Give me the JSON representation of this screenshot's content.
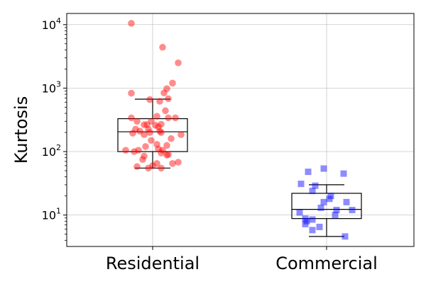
{
  "chart_data": {
    "type": "scatter",
    "subtype": "box-with-jitter",
    "title": "",
    "xlabel": "",
    "ylabel": "Kurtosis",
    "yscale": "log",
    "ylim": [
      3.2,
      15000
    ],
    "yticks": [
      10,
      100,
      1000,
      10000
    ],
    "ytick_labels": [
      {
        "base": "10",
        "exp": "1"
      },
      {
        "base": "10",
        "exp": "2"
      },
      {
        "base": "10",
        "exp": "3"
      },
      {
        "base": "10",
        "exp": "4"
      }
    ],
    "grid": true,
    "categories": [
      "Residential",
      "Commercial"
    ],
    "series": [
      {
        "category": "Residential",
        "marker": "circle",
        "color": "#ff0000",
        "box": {
          "whisker_low": 55,
          "q1": 100,
          "median": 205,
          "q3": 330,
          "whisker_high": 670
        },
        "points": [
          [
            -0.15,
            10500
          ],
          [
            0.07,
            4400
          ],
          [
            0.18,
            2500
          ],
          [
            0.14,
            1200
          ],
          [
            0.1,
            980
          ],
          [
            -0.15,
            830
          ],
          [
            0.08,
            840
          ],
          [
            -0.02,
            660
          ],
          [
            0.11,
            680
          ],
          [
            0.05,
            620
          ],
          [
            0.09,
            440
          ],
          [
            -0.15,
            340
          ],
          [
            0.03,
            360
          ],
          [
            0.16,
            340
          ],
          [
            0.11,
            340
          ],
          [
            -0.11,
            300
          ],
          [
            -0.06,
            265
          ],
          [
            -0.04,
            265
          ],
          [
            -0.01,
            300
          ],
          [
            0.02,
            260
          ],
          [
            0.06,
            270
          ],
          [
            0.04,
            245
          ],
          [
            -0.09,
            210
          ],
          [
            -0.03,
            225
          ],
          [
            -0.12,
            225
          ],
          [
            -0.02,
            200
          ],
          [
            0.05,
            210
          ],
          [
            0.06,
            200
          ],
          [
            0.2,
            185
          ],
          [
            -0.14,
            195
          ],
          [
            0.13,
            160
          ],
          [
            -0.06,
            185
          ],
          [
            -0.01,
            150
          ],
          [
            0.03,
            130
          ],
          [
            0.1,
            125
          ],
          [
            0.04,
            110
          ],
          [
            0.07,
            105
          ],
          [
            -0.05,
            120
          ],
          [
            -0.1,
            105
          ],
          [
            -0.13,
            100
          ],
          [
            0.06,
            95
          ],
          [
            -0.19,
            105
          ],
          [
            0.1,
            88
          ],
          [
            0.11,
            90
          ],
          [
            -0.06,
            85
          ],
          [
            -0.07,
            75
          ],
          [
            0.03,
            65
          ],
          [
            0.14,
            65
          ],
          [
            0.18,
            68
          ],
          [
            0.0,
            60
          ],
          [
            -0.11,
            58
          ],
          [
            -0.03,
            55
          ],
          [
            0.06,
            55
          ]
        ]
      },
      {
        "category": "Commercial",
        "marker": "square",
        "color": "#0000ff",
        "box": {
          "whisker_low": 4.6,
          "q1": 8.8,
          "median": 12.3,
          "q3": 22,
          "whisker_high": 30
        },
        "points": [
          [
            -0.02,
            54
          ],
          [
            -0.13,
            48
          ],
          [
            0.12,
            45
          ],
          [
            -0.18,
            31
          ],
          [
            -0.08,
            29
          ],
          [
            -0.1,
            24
          ],
          [
            0.03,
            20
          ],
          [
            0.02,
            18
          ],
          [
            -0.02,
            16
          ],
          [
            0.14,
            16
          ],
          [
            -0.04,
            13
          ],
          [
            0.07,
            12
          ],
          [
            0.18,
            12
          ],
          [
            -0.19,
            11
          ],
          [
            0.06,
            10
          ],
          [
            -0.15,
            8.8
          ],
          [
            -0.1,
            8.5
          ],
          [
            -0.14,
            8.0
          ],
          [
            -0.15,
            7.2
          ],
          [
            -0.05,
            6.5
          ],
          [
            -0.1,
            5.8
          ],
          [
            0.13,
            4.6
          ]
        ]
      }
    ]
  }
}
